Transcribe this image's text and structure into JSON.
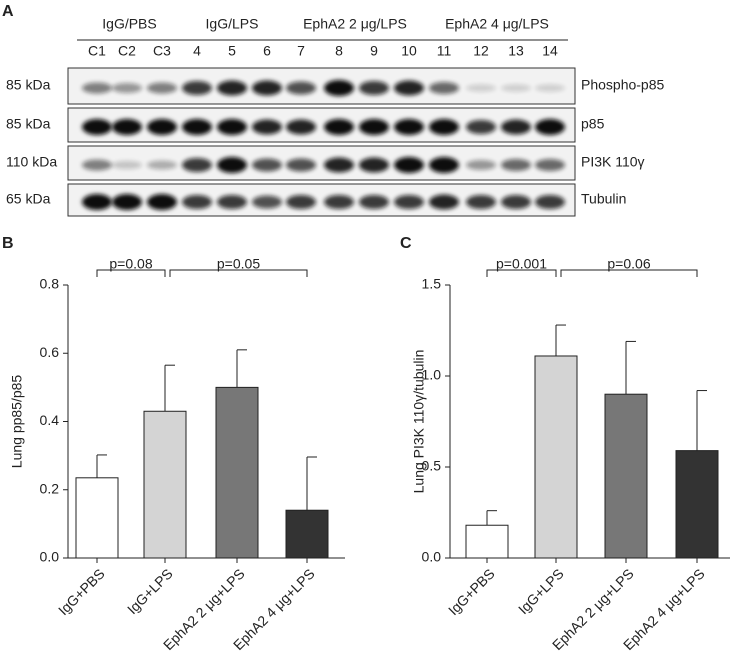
{
  "panel_a": {
    "label": "A",
    "groups": [
      {
        "name": "IgG/PBS",
        "lanes": [
          "C1",
          "C2",
          "C3"
        ]
      },
      {
        "name": "IgG/LPS",
        "lanes": [
          "4",
          "5",
          "6"
        ]
      },
      {
        "name": "EphA2 2 μg/LPS",
        "lanes": [
          "7",
          "8",
          "9",
          "10"
        ]
      },
      {
        "name": "EphA2 4 μg/LPS",
        "lanes": [
          "11",
          "12",
          "13",
          "14"
        ]
      }
    ],
    "rows": [
      {
        "size": "85 kDa",
        "protein": "Phospho-p85"
      },
      {
        "size": "85 kDa",
        "protein": "p85"
      },
      {
        "size": "110 kDa",
        "protein": "PI3K 110γ"
      },
      {
        "size": "65 kDa",
        "protein": "Tubulin"
      }
    ]
  },
  "chart_data": [
    {
      "type": "bar",
      "panel": "B",
      "y_label": "Lung pp85/p85",
      "categories": [
        "IgG+PBS",
        "IgG+LPS",
        "EphA2 2 μg+LPS",
        "EphA2 4 μg+LPS"
      ],
      "values": [
        0.235,
        0.43,
        0.5,
        0.14
      ],
      "errors": [
        0.067,
        0.135,
        0.11,
        0.156
      ],
      "colors": [
        "#ffffff",
        "#d4d4d4",
        "#777777",
        "#333333"
      ],
      "ylim": [
        0,
        0.8
      ],
      "yticks": [
        {
          "value": 0,
          "label": "0.0"
        },
        0.2,
        0.4,
        0.6,
        0.8
      ],
      "annotations": [
        {
          "text": "p=0.08",
          "between": [
            0,
            1
          ]
        },
        {
          "text": "p=0.05",
          "between": [
            1,
            3
          ]
        }
      ]
    },
    {
      "type": "bar",
      "panel": "C",
      "y_label": "Lung PI3K 110γ/tubulin",
      "categories": [
        "IgG+PBS",
        "IgG+LPS",
        "EphA2 2 μg+LPS",
        "EphA2 4 μg+LPS"
      ],
      "values": [
        0.18,
        1.11,
        0.9,
        0.59
      ],
      "errors": [
        0.08,
        0.17,
        0.29,
        0.33
      ],
      "colors": [
        "#ffffff",
        "#d4d4d4",
        "#777777",
        "#333333"
      ],
      "ylim": [
        0,
        1.5
      ],
      "yticks": [
        {
          "value": 0,
          "label": "0.0"
        },
        0.5,
        {
          "value": 1,
          "label": "1.0"
        },
        1.5
      ],
      "annotations": [
        {
          "text": "p=0.001",
          "between": [
            0,
            1
          ]
        },
        {
          "text": "p=0.06",
          "between": [
            1,
            3
          ]
        }
      ]
    }
  ]
}
